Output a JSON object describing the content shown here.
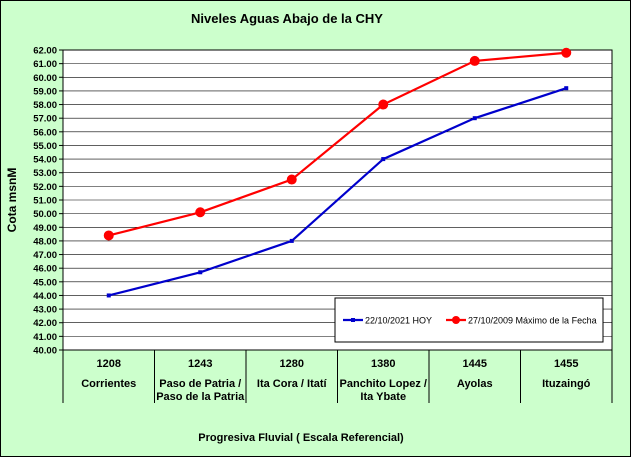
{
  "chart_data": {
    "type": "line",
    "title": "Niveles Aguas Abajo de la CHY",
    "xlabel": "Progresiva Fluvial ( Escala Referencial)",
    "ylabel": "Cota msnM",
    "ylim": [
      40,
      62
    ],
    "ystep": 1,
    "ytick_labels": [
      "40.00",
      "41.00",
      "42.00",
      "43.00",
      "44.00",
      "45.00",
      "46.00",
      "47.00",
      "48.00",
      "49.00",
      "50.00",
      "51.00",
      "52.00",
      "53.00",
      "54.00",
      "55.00",
      "56.00",
      "57.00",
      "58.00",
      "59.00",
      "60.00",
      "61.00",
      "62.00"
    ],
    "grid": true,
    "legend_position": "bottom-right",
    "categories": [
      {
        "km": "1208",
        "name1": "Corrientes",
        "name2": ""
      },
      {
        "km": "1243",
        "name1": "Paso de Patria /",
        "name2": "Paso de la Patria"
      },
      {
        "km": "1280",
        "name1": "Ita Cora / Itatí",
        "name2": ""
      },
      {
        "km": "1380",
        "name1": "Panchito Lopez /",
        "name2": "Ita Ybate"
      },
      {
        "km": "1445",
        "name1": "Ayolas",
        "name2": ""
      },
      {
        "km": "1455",
        "name1": "Ituzaingó",
        "name2": ""
      }
    ],
    "series": [
      {
        "name": "22/10/2021 HOY",
        "color": "#0000cc",
        "marker": "square",
        "values": [
          44.0,
          45.7,
          48.0,
          54.0,
          57.0,
          59.2
        ]
      },
      {
        "name": "27/10/2009 Máximo de la Fecha",
        "color": "#ff0000",
        "marker": "circle",
        "values": [
          48.4,
          50.1,
          52.5,
          58.0,
          61.2,
          61.8
        ]
      }
    ]
  }
}
